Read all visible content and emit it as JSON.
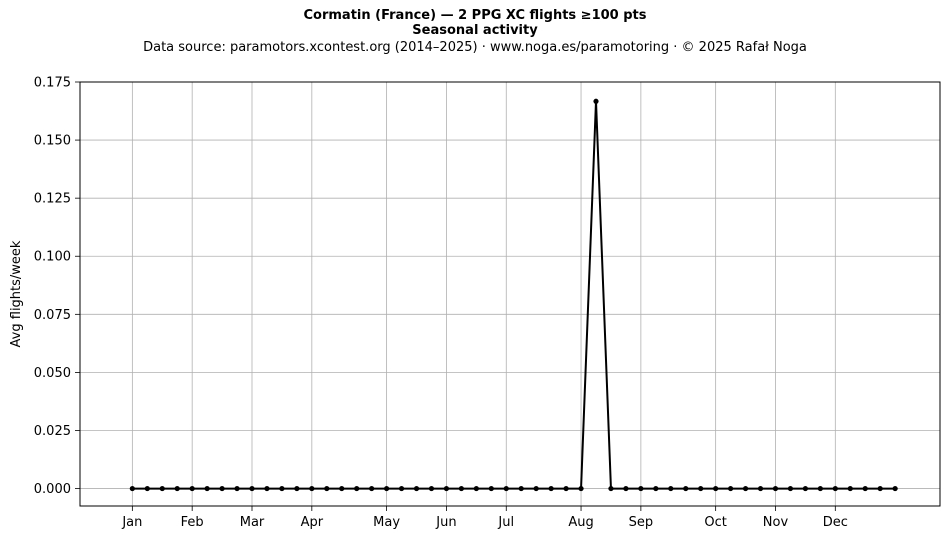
{
  "chart_data": {
    "type": "line",
    "title": "Cormatin (France)  —  2 PPG XC flights ≥100 pts",
    "subtitle": "Seasonal activity",
    "source_note": "Data source: paramotors.xcontest.org (2014–2025)  ·  www.noga.es/paramotoring  ·  © 2025 Rafał Noga",
    "xlabel": "",
    "ylabel": "Avg flights/week",
    "xlim": [
      -2.5,
      55
    ],
    "ylim": [
      -0.0075,
      0.175
    ],
    "grid": true,
    "x_ticks": [
      {
        "label": "Jan",
        "week": 1
      },
      {
        "label": "Feb",
        "week": 5
      },
      {
        "label": "Mar",
        "week": 9
      },
      {
        "label": "Apr",
        "week": 13
      },
      {
        "label": "May",
        "week": 18
      },
      {
        "label": "Jun",
        "week": 22
      },
      {
        "label": "Jul",
        "week": 26
      },
      {
        "label": "Aug",
        "week": 31
      },
      {
        "label": "Sep",
        "week": 35
      },
      {
        "label": "Oct",
        "week": 40
      },
      {
        "label": "Nov",
        "week": 44
      },
      {
        "label": "Dec",
        "week": 48
      }
    ],
    "y_ticks": [
      "0.000",
      "0.025",
      "0.050",
      "0.075",
      "0.100",
      "0.125",
      "0.150",
      "0.175"
    ],
    "series": [
      {
        "color": "#000000",
        "x": [
          1,
          2,
          3,
          4,
          5,
          6,
          7,
          8,
          9,
          10,
          11,
          12,
          13,
          14,
          15,
          16,
          17,
          18,
          19,
          20,
          21,
          22,
          23,
          24,
          25,
          26,
          27,
          28,
          29,
          30,
          31,
          32,
          33,
          34,
          35,
          36,
          37,
          38,
          39,
          40,
          41,
          42,
          43,
          44,
          45,
          46,
          47,
          48,
          49,
          50,
          51,
          52
        ],
        "values": [
          0,
          0,
          0,
          0,
          0,
          0,
          0,
          0,
          0,
          0,
          0,
          0,
          0,
          0,
          0,
          0,
          0,
          0,
          0,
          0,
          0,
          0,
          0,
          0,
          0,
          0,
          0,
          0,
          0,
          0,
          0,
          0.1667,
          0,
          0,
          0,
          0,
          0,
          0,
          0,
          0,
          0,
          0,
          0,
          0,
          0,
          0,
          0,
          0,
          0,
          0,
          0,
          0
        ]
      }
    ]
  }
}
